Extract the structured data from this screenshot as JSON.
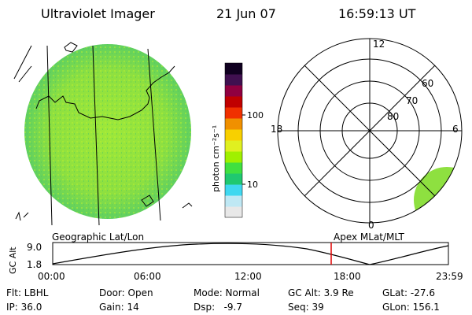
{
  "header": {
    "title": "Ultraviolet Imager",
    "date": "21 Jun 07",
    "time": "16:59:13 UT"
  },
  "colorbar": {
    "unit_label": "photon cm⁻²s⁻¹",
    "tick_100": "100",
    "tick_10": "10",
    "colors": [
      "#e8e8e8",
      "#bfe8f4",
      "#40d8f0",
      "#20c870",
      "#40e040",
      "#a0f000",
      "#e0f020",
      "#f8d000",
      "#f09000",
      "#f03000",
      "#c00000",
      "#900040",
      "#401050",
      "#100020"
    ]
  },
  "polar_plot": {
    "labels": {
      "mlt_12": "12",
      "mlt_18": "18",
      "mlt_6": "6",
      "mlt_0": "0",
      "lat_60": "60",
      "lat_70": "70",
      "lat_80": "80"
    }
  },
  "orbit_plot": {
    "ylabel": "GC Alt",
    "y_max": "9.0",
    "y_min": "1.8",
    "left_caption": "Geographic Lat/Lon",
    "right_caption": "Apex MLat/MLT",
    "x_ticks": [
      "00:00",
      "06:00",
      "12:00",
      "18:00",
      "23:59"
    ],
    "current_time_marker": "16:59",
    "marker_color": "#e00000"
  },
  "status": {
    "flt": "Flt: LBHL",
    "ip": "IP: 36.0",
    "door": "Door: Open",
    "gain": "Gain: 14",
    "mode": "Mode: Normal",
    "dsp": "Dsp:   -9.7",
    "gc_alt": "GC Alt: 3.9 Re",
    "seq": "Seq: 39",
    "glat": "GLat: -27.6",
    "glon": "GLon: 156.1"
  }
}
